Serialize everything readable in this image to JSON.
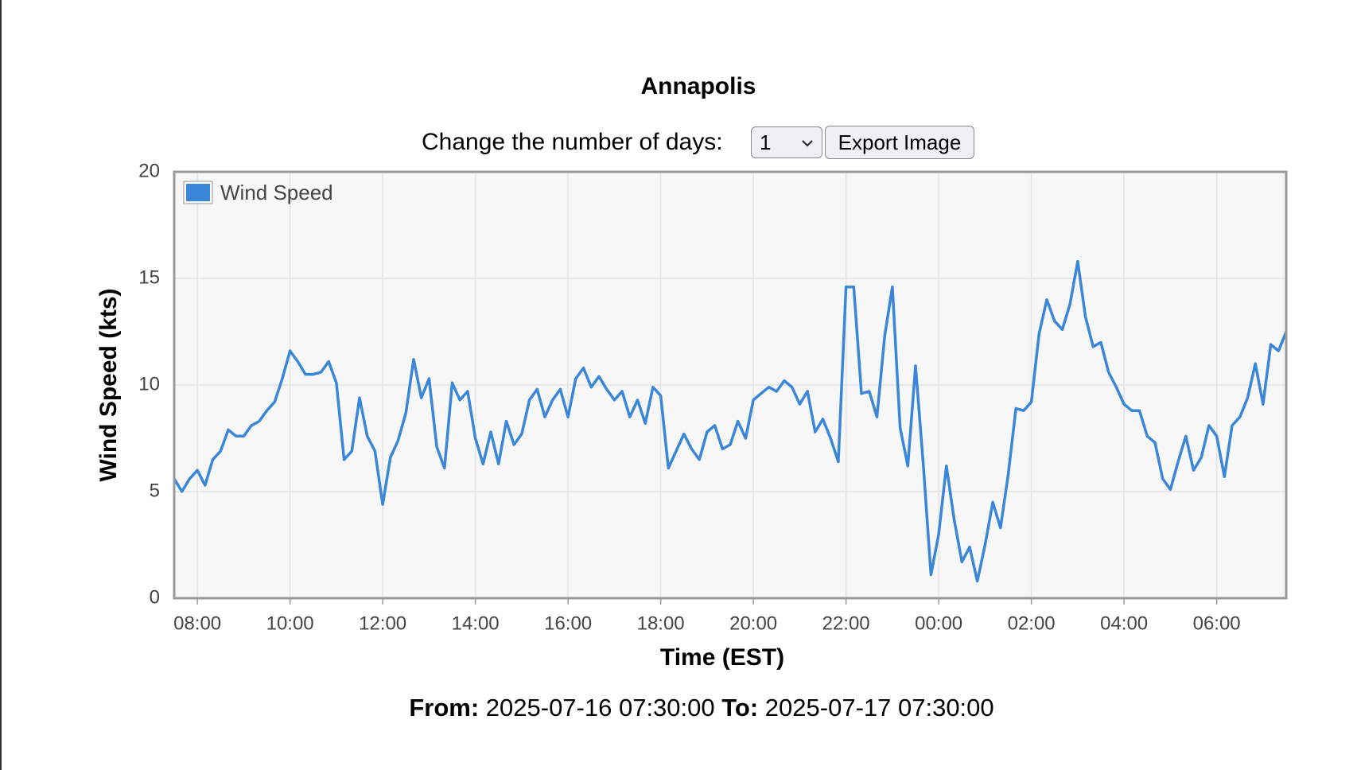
{
  "chart_data": {
    "type": "line",
    "title": "Annapolis",
    "x_label": "Time (EST)",
    "y_label": "Wind Speed (kts)",
    "x": [
      "07:30",
      "07:40",
      "07:50",
      "08:00",
      "08:10",
      "08:20",
      "08:30",
      "08:40",
      "08:50",
      "09:00",
      "09:10",
      "09:20",
      "09:30",
      "09:40",
      "09:50",
      "10:00",
      "10:10",
      "10:20",
      "10:30",
      "10:40",
      "10:50",
      "11:00",
      "11:10",
      "11:20",
      "11:30",
      "11:40",
      "11:50",
      "12:00",
      "12:10",
      "12:20",
      "12:30",
      "12:40",
      "12:50",
      "13:00",
      "13:10",
      "13:20",
      "13:30",
      "13:40",
      "13:50",
      "14:00",
      "14:10",
      "14:20",
      "14:30",
      "14:40",
      "14:50",
      "15:00",
      "15:10",
      "15:20",
      "15:30",
      "15:40",
      "15:50",
      "16:00",
      "16:10",
      "16:20",
      "16:30",
      "16:40",
      "16:50",
      "17:00",
      "17:10",
      "17:20",
      "17:30",
      "17:40",
      "17:50",
      "18:00",
      "18:10",
      "18:20",
      "18:30",
      "18:40",
      "18:50",
      "19:00",
      "19:10",
      "19:20",
      "19:30",
      "19:40",
      "19:50",
      "20:00",
      "20:10",
      "20:20",
      "20:30",
      "20:40",
      "20:50",
      "21:00",
      "21:10",
      "21:20",
      "21:30",
      "21:40",
      "21:50",
      "22:00",
      "22:10",
      "22:20",
      "22:30",
      "22:40",
      "22:50",
      "23:00",
      "23:10",
      "23:20",
      "23:30",
      "23:40",
      "23:50",
      "00:00",
      "00:10",
      "00:20",
      "00:30",
      "00:40",
      "00:50",
      "01:00",
      "01:10",
      "01:20",
      "01:30",
      "01:40",
      "01:50",
      "02:00",
      "02:10",
      "02:20",
      "02:30",
      "02:40",
      "02:50",
      "03:00",
      "03:10",
      "03:20",
      "03:30",
      "03:40",
      "03:50",
      "04:00",
      "04:10",
      "04:20",
      "04:30",
      "04:40",
      "04:50",
      "05:00",
      "05:10",
      "05:20",
      "05:30",
      "05:40",
      "05:50",
      "06:00",
      "06:10",
      "06:20",
      "06:30",
      "06:40",
      "06:50",
      "07:00",
      "07:10",
      "07:20",
      "07:30"
    ],
    "series": [
      {
        "name": "Wind Speed",
        "color": "#3a86d8",
        "values": [
          5.6,
          5.0,
          5.6,
          6.0,
          5.3,
          6.5,
          6.9,
          7.9,
          7.6,
          7.6,
          8.1,
          8.3,
          8.8,
          9.2,
          10.3,
          11.6,
          11.1,
          10.5,
          10.5,
          10.6,
          11.1,
          10.1,
          6.5,
          6.9,
          9.4,
          7.6,
          6.9,
          4.4,
          6.6,
          7.4,
          8.7,
          11.2,
          9.4,
          10.3,
          7.1,
          6.1,
          10.1,
          9.3,
          9.7,
          7.5,
          6.3,
          7.8,
          6.3,
          8.3,
          7.2,
          7.7,
          9.3,
          9.8,
          8.5,
          9.3,
          9.8,
          8.5,
          10.3,
          10.8,
          9.9,
          10.4,
          9.8,
          9.3,
          9.7,
          8.5,
          9.3,
          8.2,
          9.9,
          9.5,
          6.1,
          6.9,
          7.7,
          7.0,
          6.5,
          7.8,
          8.1,
          7.0,
          7.2,
          8.3,
          7.5,
          9.3,
          9.6,
          9.9,
          9.7,
          10.2,
          9.9,
          9.1,
          9.7,
          7.8,
          8.4,
          7.5,
          6.4,
          14.6,
          14.6,
          9.6,
          9.7,
          8.5,
          12.3,
          14.6,
          8.0,
          6.2,
          10.9,
          6.3,
          1.1,
          3.0,
          6.2,
          3.7,
          1.7,
          2.4,
          0.8,
          2.5,
          4.5,
          3.3,
          5.8,
          8.9,
          8.8,
          9.2,
          12.4,
          14.0,
          13.0,
          12.6,
          13.8,
          15.8,
          13.2,
          11.8,
          12.0,
          10.6,
          9.9,
          9.1,
          8.8,
          8.8,
          7.6,
          7.3,
          5.6,
          5.1,
          6.4,
          7.6,
          6.0,
          6.6,
          8.1,
          7.6,
          5.7,
          8.1,
          8.5,
          9.4,
          11.0,
          9.1,
          11.9,
          11.6,
          12.5
        ]
      }
    ],
    "ylim": [
      0,
      20
    ],
    "yticks": [
      0,
      5,
      10,
      15,
      20
    ],
    "xticks": [
      "08:00",
      "10:00",
      "12:00",
      "14:00",
      "16:00",
      "18:00",
      "20:00",
      "22:00",
      "00:00",
      "02:00",
      "04:00",
      "06:00"
    ],
    "grid": true,
    "legend": "top-left"
  },
  "controls": {
    "label": "Change the number of days:",
    "select_value": "1",
    "button": "Export Image"
  },
  "footer": {
    "from_label": "From:",
    "from_value": "2025-07-16 07:30:00",
    "to_label": "To:",
    "to_value": "2025-07-17 07:30:00"
  }
}
